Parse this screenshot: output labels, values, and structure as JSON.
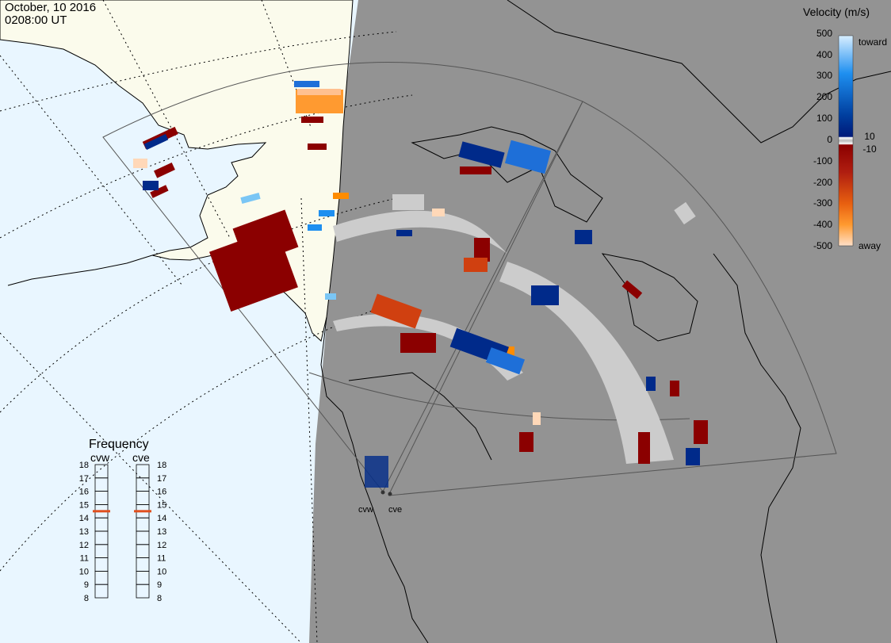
{
  "header": {
    "date": "October, 10 2016",
    "time": "0208:00 UT"
  },
  "velocity_scale": {
    "title": "Velocity (m/s)",
    "ticks": [
      "500",
      "400",
      "300",
      "200",
      "100",
      "10",
      "0",
      "-10",
      "-100",
      "-200",
      "-300",
      "-400",
      "-500"
    ],
    "toward_label": "toward",
    "away_label": "away",
    "colors": {
      "toward_max": "#d8eeff",
      "toward_mid": "#1e8ff0",
      "toward_low": "#003e9e",
      "toward_min": "#001a7a",
      "away_min": "#8b0000",
      "away_mid": "#d04010",
      "away_high": "#ff8c00",
      "away_max": "#ffe0c8",
      "ground_scatter": "#cccccc"
    }
  },
  "frequency_panel": {
    "title": "Frequency",
    "radars": [
      {
        "name": "cvw",
        "frequency_mhz": 15
      },
      {
        "name": "cve",
        "frequency_mhz": 15
      }
    ],
    "ticks": [
      "18",
      "17",
      "16",
      "15",
      "14",
      "13",
      "12",
      "11",
      "10",
      "9",
      "8"
    ],
    "marker_color": "#e0501e"
  },
  "radar_sites": [
    {
      "name": "cvw"
    },
    {
      "name": "cve"
    }
  ],
  "map": {
    "night_color": "#939393",
    "day_ocean_color": "#e9f6ff",
    "day_land_color": "#fbfbec",
    "coastline_color": "#000000"
  }
}
